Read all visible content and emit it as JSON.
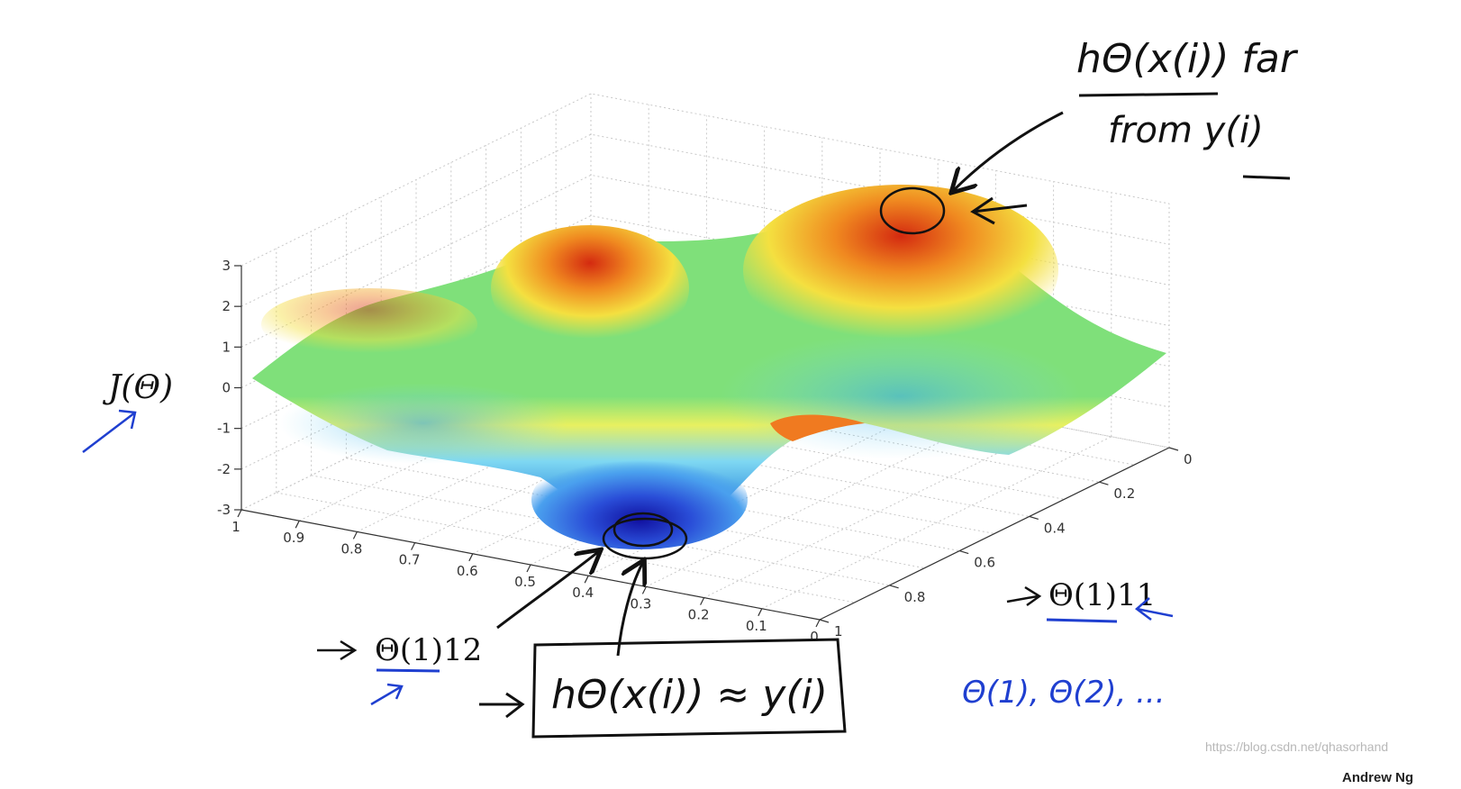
{
  "chart_data": {
    "type": "surface",
    "zlabel": "J(Θ)",
    "xlabel": "Θ(1)12",
    "ylabel": "Θ(1)11",
    "z_ticks": [
      3,
      2,
      1,
      0,
      -1,
      -2,
      -3
    ],
    "x_ticks": [
      1,
      0.9,
      0.8,
      0.7,
      0.6,
      0.5,
      0.4,
      0.3,
      0.2,
      0.1,
      0
    ],
    "y_ticks": [
      0,
      0.2,
      0.4,
      0.6,
      0.8,
      1
    ],
    "zlim": [
      -3,
      3
    ],
    "xlim": [
      0,
      1
    ],
    "ylim": [
      0,
      1
    ],
    "grid": true,
    "colormap": "jet"
  },
  "annotations": {
    "top_note_line1": "hΘ(x(i)) far",
    "top_note_line2": "from y(i)",
    "bottom_note": "hΘ(x(i)) ≈ y(i)",
    "theta_sequence": "Θ(1), Θ(2), ..."
  },
  "footer": {
    "watermark": "https://blog.csdn.net/qhasorhand",
    "author": "Andrew Ng"
  },
  "colors": {
    "axis": "#333333",
    "grid": "#c8c8c8",
    "ink_black": "#111111",
    "ink_blue": "#1f3fd0"
  }
}
